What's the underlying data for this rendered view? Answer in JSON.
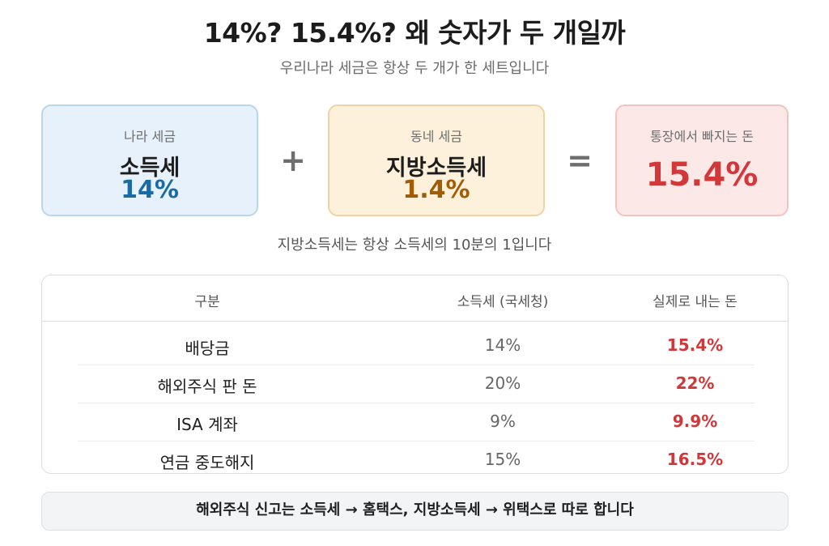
{
  "title": "14%? 15.4%? 왜 숫자가 두 개일까",
  "subtitle": "우리나라 세금은 항상 두 개가 한 세트입니다",
  "cards": {
    "national": {
      "label": "나라 세금",
      "name": "소득세",
      "rate": "14%",
      "color": "#1a6aa6"
    },
    "local": {
      "label": "동네 세금",
      "name": "지방소득세",
      "rate": "1.4%",
      "color": "#a05c07"
    },
    "total": {
      "label": "통장에서 빠지는 돈",
      "rate": "15.4%",
      "color": "#d2373a"
    }
  },
  "operators": {
    "plus": "+",
    "equals": "="
  },
  "note": "지방소득세는 항상 소득세의 10분의 1입니다",
  "table": {
    "headers": [
      "구분",
      "소득세 (국세청)",
      "실제로 내는 돈"
    ],
    "rows": [
      {
        "category": "배당금",
        "income_tax": "14%",
        "actual": "15.4%"
      },
      {
        "category": "해외주식 판 돈",
        "income_tax": "20%",
        "actual": "22%"
      },
      {
        "category": "ISA 계좌",
        "income_tax": "9%",
        "actual": "9.9%"
      },
      {
        "category": "연금 중도해지",
        "income_tax": "15%",
        "actual": "16.5%"
      }
    ]
  },
  "footer": "해외주식 신고는 소득세 → 홈택스, 지방소득세 → 위택스로 따로 합니다"
}
